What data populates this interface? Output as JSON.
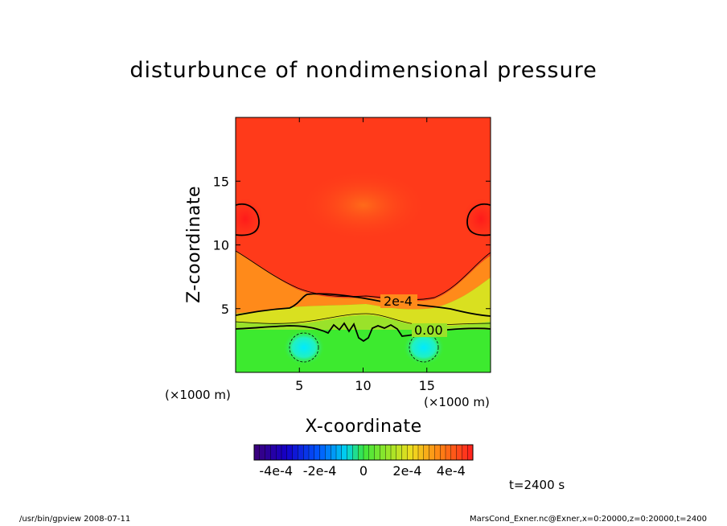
{
  "figure": {
    "title": "disturbunce of nondimensional pressure",
    "time_label": "t=2400 s",
    "footer_left": "/usr/bin/gpview   2008-07-11",
    "footer_right": "MarsCond_Exner.nc@Exner,x=0:20000,z=0:20000,t=2400"
  },
  "colors": {
    "accent_red": "#ff2a1a",
    "green": "#3dea2f",
    "cyan": "#00eaff",
    "contour": "#000000"
  },
  "chart_data": {
    "type": "heatmap",
    "title": "disturbunce of nondimensional pressure",
    "xlabel": "X-coordinate",
    "ylabel": "Z-coordinate",
    "x_unit": "(×1000 m)",
    "y_unit": "(×1000 m)",
    "xlim": [
      0,
      20
    ],
    "ylim": [
      0,
      20
    ],
    "x_ticks": [
      5,
      10,
      15
    ],
    "y_ticks": [
      5,
      10,
      15
    ],
    "colorbar": {
      "range": [
        -0.0005,
        0.0005
      ],
      "tick_values": [
        -0.0004,
        -0.0002,
        0,
        0.0002,
        0.0004
      ],
      "tick_labels": [
        "-4e-4",
        "-2e-4",
        "0",
        "2e-4",
        "4e-4"
      ]
    },
    "contour_labels": [
      {
        "text": "2e-4",
        "x": 12.5,
        "z": 5.4
      },
      {
        "text": "0.00",
        "x": 14.6,
        "z": 3.2
      }
    ]
  }
}
